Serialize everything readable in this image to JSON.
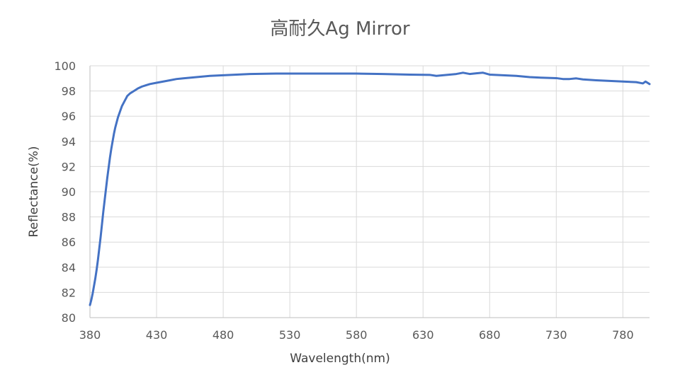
{
  "chart_data": {
    "type": "line",
    "title": "高耐久Ag Mirror",
    "xlabel": "Wavelength(nm)",
    "ylabel": "Reflectance(%)",
    "xlim": [
      380,
      800
    ],
    "ylim": [
      80,
      100
    ],
    "x_ticks": [
      380,
      430,
      480,
      530,
      580,
      630,
      680,
      730,
      780
    ],
    "y_ticks": [
      80,
      82,
      84,
      86,
      88,
      90,
      92,
      94,
      96,
      98,
      100
    ],
    "grid": true,
    "legend": "none",
    "series": [
      {
        "color": "#4472c4",
        "points": [
          [
            380,
            81.0
          ],
          [
            381,
            81.4
          ],
          [
            382,
            81.9
          ],
          [
            383,
            82.5
          ],
          [
            384,
            83.1
          ],
          [
            385,
            83.8
          ],
          [
            386,
            84.6
          ],
          [
            387,
            85.5
          ],
          [
            388,
            86.4
          ],
          [
            389,
            87.4
          ],
          [
            390,
            88.4
          ],
          [
            391,
            89.3
          ],
          [
            392,
            90.2
          ],
          [
            393,
            91.1
          ],
          [
            394,
            91.9
          ],
          [
            395,
            92.7
          ],
          [
            396,
            93.4
          ],
          [
            397,
            94.0
          ],
          [
            398,
            94.6
          ],
          [
            399,
            95.1
          ],
          [
            400,
            95.5
          ],
          [
            401,
            95.9
          ],
          [
            402,
            96.2
          ],
          [
            403,
            96.5
          ],
          [
            404,
            96.8
          ],
          [
            405,
            97.0
          ],
          [
            406,
            97.2
          ],
          [
            407,
            97.4
          ],
          [
            408,
            97.6
          ],
          [
            410,
            97.8
          ],
          [
            413,
            98.0
          ],
          [
            416,
            98.2
          ],
          [
            419,
            98.35
          ],
          [
            422,
            98.45
          ],
          [
            425,
            98.55
          ],
          [
            430,
            98.65
          ],
          [
            435,
            98.75
          ],
          [
            440,
            98.85
          ],
          [
            445,
            98.95
          ],
          [
            450,
            99.0
          ],
          [
            460,
            99.1
          ],
          [
            470,
            99.2
          ],
          [
            480,
            99.25
          ],
          [
            490,
            99.3
          ],
          [
            500,
            99.35
          ],
          [
            520,
            99.38
          ],
          [
            540,
            99.38
          ],
          [
            560,
            99.38
          ],
          [
            580,
            99.38
          ],
          [
            600,
            99.35
          ],
          [
            620,
            99.3
          ],
          [
            635,
            99.28
          ],
          [
            640,
            99.2
          ],
          [
            645,
            99.25
          ],
          [
            650,
            99.3
          ],
          [
            655,
            99.35
          ],
          [
            660,
            99.45
          ],
          [
            665,
            99.35
          ],
          [
            670,
            99.4
          ],
          [
            675,
            99.45
          ],
          [
            680,
            99.3
          ],
          [
            690,
            99.25
          ],
          [
            700,
            99.2
          ],
          [
            710,
            99.1
          ],
          [
            720,
            99.05
          ],
          [
            730,
            99.02
          ],
          [
            735,
            98.95
          ],
          [
            740,
            98.95
          ],
          [
            745,
            99.0
          ],
          [
            750,
            98.92
          ],
          [
            760,
            98.85
          ],
          [
            770,
            98.8
          ],
          [
            780,
            98.75
          ],
          [
            790,
            98.7
          ],
          [
            795,
            98.6
          ],
          [
            797,
            98.75
          ],
          [
            800,
            98.55
          ]
        ]
      }
    ]
  }
}
